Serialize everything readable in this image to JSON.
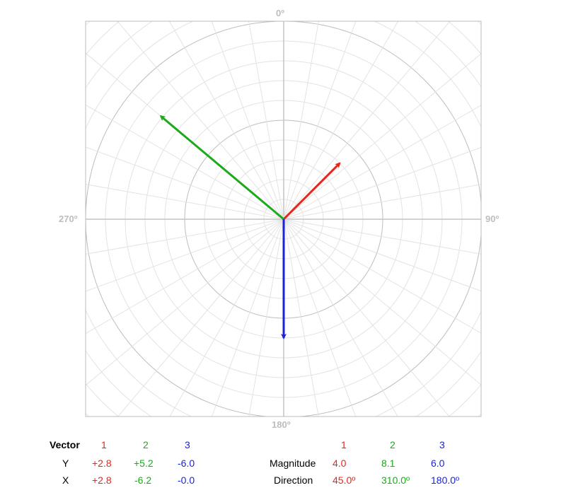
{
  "chart_data": {
    "type": "polar-vector",
    "direction_labels": {
      "top": "0º",
      "right": "90º",
      "bottom": "180º",
      "left": "270º"
    },
    "radial_max": 10,
    "grid": true,
    "angular_grid_step_deg": 10,
    "vectors": [
      {
        "id": "1",
        "color": "#e8251a",
        "x": "+2.8",
        "y": "+2.8",
        "magnitude": "4.0",
        "direction": "45.0º",
        "mag": 4.0,
        "dir_deg": 45.0
      },
      {
        "id": "2",
        "color": "#1aaa1a",
        "x": "-6.2",
        "y": "+5.2",
        "magnitude": "8.1",
        "direction": "310.0º",
        "mag": 8.1,
        "dir_deg": 310.0
      },
      {
        "id": "3",
        "color": "#1a24d6",
        "x": "-0.0",
        "y": "-6.0",
        "magnitude": "6.0",
        "direction": "180.0º",
        "mag": 6.0,
        "dir_deg": 180.0
      }
    ]
  },
  "table": {
    "vector_header": "Vector",
    "y_label": "Y",
    "x_label": "X",
    "magnitude_label": "Magnitude",
    "direction_label": "Direction"
  },
  "colors": {
    "v1": "#e8251a",
    "v2": "#1aaa1a",
    "v3": "#1a24d6",
    "grid": "#d9d9d9",
    "frame": "#bdbdbd"
  }
}
